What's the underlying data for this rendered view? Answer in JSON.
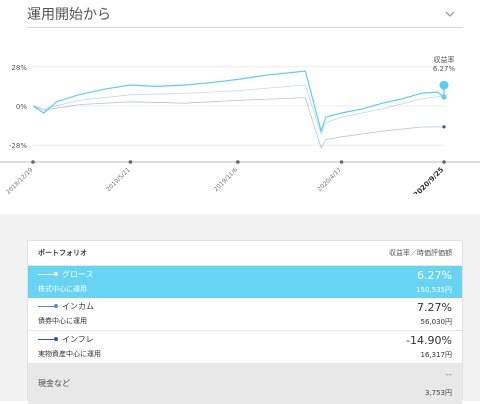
{
  "period_selector": {
    "label": "運用開始から"
  },
  "chart_data": {
    "type": "line",
    "x_ticks": [
      "2018/12/19",
      "2019/5/21",
      "2019/11/6",
      "2020/4/17",
      "2020/9/25"
    ],
    "y_ticks": [
      "28%",
      "0%",
      "-28%"
    ],
    "ylim": [
      -40,
      40
    ],
    "annotation": {
      "label": "収益率",
      "value": "6.27%"
    },
    "series": [
      {
        "name": "グロース",
        "color": "#5bcfee",
        "x": [
          "2018/12/19",
          "2019/1/5",
          "2019/1/25",
          "2019/3/1",
          "2019/4/10",
          "2019/5/21",
          "2019/7/1",
          "2019/8/15",
          "2019/10/1",
          "2019/11/6",
          "2019/12/20",
          "2020/2/1",
          "2020/2/20",
          "2020/3/16",
          "2020/3/23",
          "2020/4/17",
          "2020/5/20",
          "2020/6/20",
          "2020/7/20",
          "2020/8/20",
          "2020/9/15",
          "2020/9/25"
        ],
        "values": [
          0,
          -5,
          3,
          8,
          12,
          15,
          14,
          15,
          17,
          19,
          22,
          24,
          25,
          -18,
          -8,
          -5,
          -2,
          2,
          5,
          9,
          10,
          6.27
        ]
      },
      {
        "name": "インカム",
        "color": "#4a90d9",
        "x": [
          "2018/12/19",
          "2019/1/5",
          "2019/3/1",
          "2019/5/21",
          "2019/8/15",
          "2019/11/6",
          "2020/2/20",
          "2020/3/16",
          "2020/3/23",
          "2020/4/17",
          "2020/6/20",
          "2020/8/20",
          "2020/9/25"
        ],
        "values": [
          0,
          -2,
          4,
          8,
          9,
          11,
          15,
          -20,
          -12,
          -8,
          -2,
          5,
          7.27
        ]
      },
      {
        "name": "インフレ",
        "color": "#2c5aa0",
        "x": [
          "2018/12/19",
          "2019/1/5",
          "2019/3/1",
          "2019/5/21",
          "2019/8/15",
          "2019/11/6",
          "2020/2/20",
          "2020/3/16",
          "2020/3/23",
          "2020/4/17",
          "2020/6/20",
          "2020/8/20",
          "2020/9/25"
        ],
        "values": [
          0,
          -3,
          1,
          3,
          2,
          4,
          6,
          -30,
          -24,
          -22,
          -18,
          -15,
          -14.9
        ]
      }
    ]
  },
  "portfolio": {
    "header_left": "ポートフォリオ",
    "header_right": "収益率／時価評価額",
    "rows": [
      {
        "name": "グロース",
        "desc": "株式中心に運用",
        "rate": "6.27%",
        "value": "150,535円",
        "color": "#ffffff"
      },
      {
        "name": "インカム",
        "desc": "債券中心に運用",
        "rate": "7.27%",
        "value": "56,030円",
        "color": "#4a90d9"
      },
      {
        "name": "インフレ",
        "desc": "実物資産中心に運用",
        "rate": "-14.90%",
        "value": "16,317円",
        "color": "#2c5aa0"
      }
    ],
    "cash": {
      "name": "現金など",
      "rate": "--",
      "value": "3,753円"
    }
  }
}
